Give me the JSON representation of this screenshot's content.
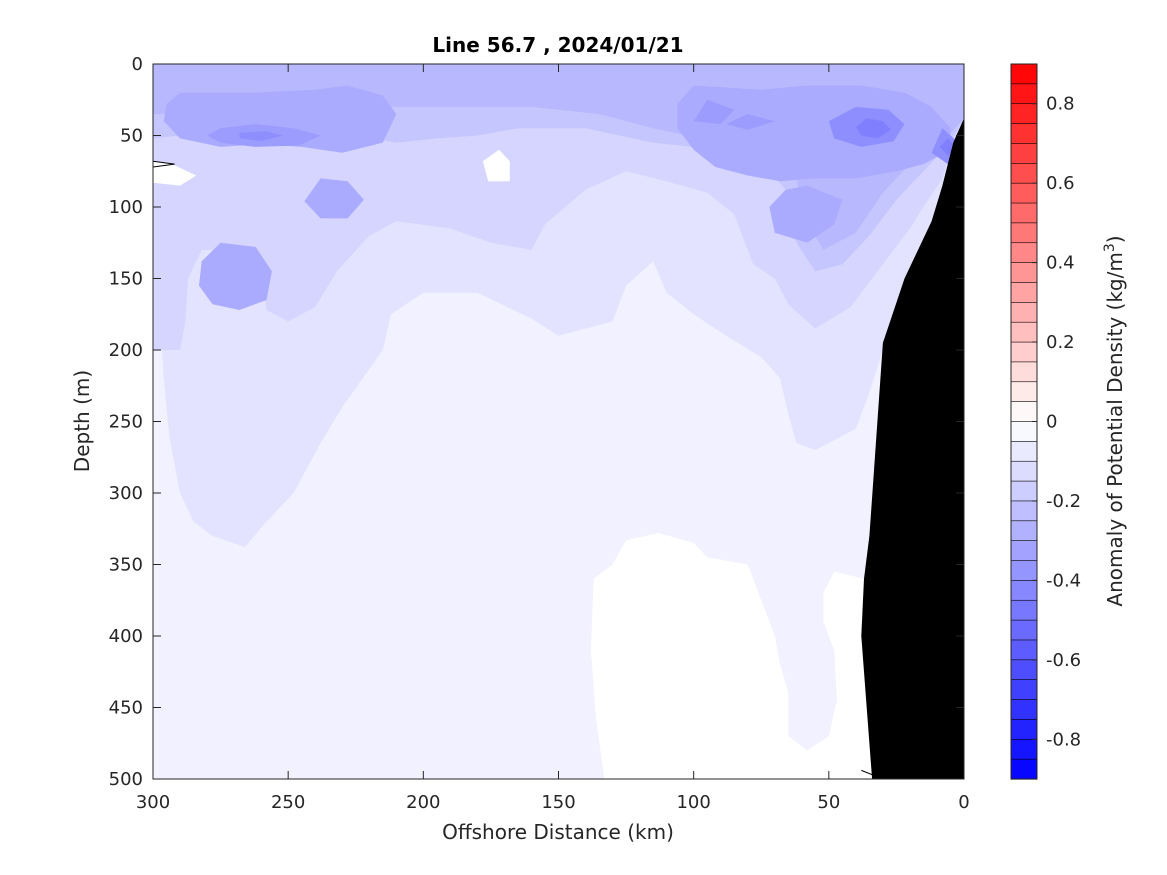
{
  "chart_data": {
    "type": "heatmap",
    "subtype": "filled-contour-section",
    "title": "Line 56.7 , 2024/01/21",
    "xlabel": "Offshore Distance (km)",
    "ylabel": "Depth (m)",
    "xlim": [
      300,
      0
    ],
    "ylim": [
      500,
      0
    ],
    "x_ticks": [
      300,
      250,
      200,
      150,
      100,
      50,
      0
    ],
    "y_ticks": [
      0,
      50,
      100,
      150,
      200,
      250,
      300,
      350,
      400,
      450,
      500
    ],
    "x_direction": "reversed",
    "y_direction": "depth-down",
    "colorbar": {
      "label": "Anomaly of Potential Density (kg/m",
      "label_superscript": "3",
      "label_suffix": ")",
      "range": [
        -0.9,
        0.9
      ],
      "step": 0.05,
      "ticks": [
        0.8,
        0.6,
        0.4,
        0.2,
        0,
        -0.2,
        -0.4,
        -0.6,
        -0.8
      ],
      "tick_labels": [
        "0.8",
        "0.6",
        "0.4",
        "0.2",
        "0",
        "-0.2",
        "-0.4",
        "-0.6",
        "-0.8"
      ],
      "negative_color": "#0000ff",
      "positive_color": "#ff0000",
      "zero_color": "#ffffff"
    },
    "contour_regions": [
      {
        "level": -0.05,
        "points": [
          [
            300,
            0
          ],
          [
            0,
            0
          ],
          [
            0,
            38
          ],
          [
            4,
            55
          ],
          [
            8,
            85
          ],
          [
            12,
            110
          ],
          [
            22,
            150
          ],
          [
            30,
            195
          ],
          [
            35,
            330
          ],
          [
            37,
            360
          ],
          [
            48,
            355
          ],
          [
            52,
            370
          ],
          [
            52,
            390
          ],
          [
            48,
            410
          ],
          [
            47,
            445
          ],
          [
            50,
            470
          ],
          [
            58,
            480
          ],
          [
            65,
            470
          ],
          [
            65,
            440
          ],
          [
            68,
            420
          ],
          [
            70,
            400
          ],
          [
            75,
            375
          ],
          [
            80,
            350
          ],
          [
            95,
            345
          ],
          [
            100,
            335
          ],
          [
            113,
            328
          ],
          [
            125,
            333
          ],
          [
            130,
            350
          ],
          [
            137,
            360
          ],
          [
            138,
            410
          ],
          [
            136,
            460
          ],
          [
            133,
            500
          ],
          [
            170,
            500
          ],
          [
            190,
            500
          ],
          [
            205,
            500
          ],
          [
            225,
            500
          ],
          [
            260,
            500
          ],
          [
            290,
            500
          ],
          [
            298,
            500
          ],
          [
            300,
            500
          ]
        ]
      },
      {
        "level": -0.1,
        "points": [
          [
            300,
            0
          ],
          [
            0,
            0
          ],
          [
            0,
            38
          ],
          [
            4,
            55
          ],
          [
            8,
            85
          ],
          [
            12,
            110
          ],
          [
            22,
            150
          ],
          [
            30,
            200
          ],
          [
            35,
            230
          ],
          [
            40,
            255
          ],
          [
            55,
            270
          ],
          [
            62,
            265
          ],
          [
            65,
            245
          ],
          [
            68,
            220
          ],
          [
            75,
            205
          ],
          [
            88,
            190
          ],
          [
            100,
            175
          ],
          [
            110,
            160
          ],
          [
            115,
            138
          ],
          [
            125,
            155
          ],
          [
            130,
            180
          ],
          [
            150,
            190
          ],
          [
            160,
            178
          ],
          [
            180,
            160
          ],
          [
            200,
            160
          ],
          [
            212,
            175
          ],
          [
            215,
            200
          ],
          [
            230,
            240
          ],
          [
            238,
            265
          ],
          [
            248,
            300
          ],
          [
            258,
            320
          ],
          [
            266,
            338
          ],
          [
            278,
            330
          ],
          [
            285,
            320
          ],
          [
            290,
            300
          ],
          [
            294,
            260
          ],
          [
            296,
            220
          ],
          [
            298,
            160
          ],
          [
            300,
            140
          ]
        ]
      },
      {
        "level": -0.15,
        "points": [
          [
            300,
            0
          ],
          [
            0,
            0
          ],
          [
            0,
            38
          ],
          [
            4,
            55
          ],
          [
            8,
            80
          ],
          [
            15,
            100
          ],
          [
            20,
            115
          ],
          [
            30,
            140
          ],
          [
            42,
            170
          ],
          [
            55,
            185
          ],
          [
            65,
            168
          ],
          [
            70,
            150
          ],
          [
            78,
            140
          ],
          [
            85,
            105
          ],
          [
            95,
            90
          ],
          [
            110,
            82
          ],
          [
            125,
            75
          ],
          [
            140,
            88
          ],
          [
            155,
            112
          ],
          [
            160,
            130
          ],
          [
            175,
            125
          ],
          [
            190,
            115
          ],
          [
            210,
            110
          ],
          [
            220,
            120
          ],
          [
            232,
            145
          ],
          [
            240,
            170
          ],
          [
            250,
            180
          ],
          [
            258,
            172
          ],
          [
            260,
            140
          ],
          [
            272,
            130
          ],
          [
            282,
            130
          ],
          [
            287,
            150
          ],
          [
            288,
            180
          ],
          [
            290,
            200
          ],
          [
            300,
            200
          ]
        ]
      },
      {
        "level": -0.2,
        "points": [
          [
            300,
            0
          ],
          [
            0,
            0
          ],
          [
            0,
            38
          ],
          [
            5,
            55
          ],
          [
            15,
            75
          ],
          [
            25,
            95
          ],
          [
            35,
            120
          ],
          [
            45,
            140
          ],
          [
            55,
            145
          ],
          [
            62,
            125
          ],
          [
            65,
            90
          ],
          [
            75,
            68
          ],
          [
            90,
            60
          ],
          [
            115,
            55
          ],
          [
            140,
            45
          ],
          [
            165,
            45
          ],
          [
            180,
            50
          ],
          [
            195,
            52
          ],
          [
            210,
            55
          ],
          [
            225,
            50
          ],
          [
            245,
            48
          ],
          [
            262,
            48
          ],
          [
            280,
            48
          ],
          [
            290,
            50
          ],
          [
            300,
            52
          ]
        ]
      },
      {
        "level": -0.25,
        "points": [
          [
            300,
            0
          ],
          [
            0,
            0
          ],
          [
            0,
            38
          ],
          [
            8,
            55
          ],
          [
            20,
            70
          ],
          [
            30,
            90
          ],
          [
            40,
            118
          ],
          [
            52,
            130
          ],
          [
            60,
            105
          ],
          [
            62,
            78
          ],
          [
            72,
            62
          ],
          [
            90,
            55
          ],
          [
            115,
            45
          ],
          [
            135,
            35
          ],
          [
            160,
            30
          ],
          [
            200,
            30
          ],
          [
            240,
            30
          ],
          [
            270,
            30
          ],
          [
            290,
            35
          ],
          [
            300,
            35
          ]
        ]
      },
      {
        "level": -0.3,
        "points": [
          [
            290,
            20
          ],
          [
            262,
            20
          ],
          [
            240,
            18
          ],
          [
            228,
            15
          ],
          [
            215,
            22
          ],
          [
            210,
            35
          ],
          [
            215,
            55
          ],
          [
            230,
            62
          ],
          [
            245,
            58
          ],
          [
            260,
            56
          ],
          [
            275,
            58
          ],
          [
            290,
            52
          ],
          [
            296,
            40
          ],
          [
            295,
            28
          ]
        ]
      },
      {
        "level": -0.3,
        "points": [
          [
            100,
            15
          ],
          [
            75,
            18
          ],
          [
            58,
            15
          ],
          [
            38,
            15
          ],
          [
            22,
            20
          ],
          [
            12,
            30
          ],
          [
            5,
            45
          ],
          [
            5,
            60
          ],
          [
            15,
            70
          ],
          [
            25,
            75
          ],
          [
            40,
            80
          ],
          [
            55,
            80
          ],
          [
            68,
            82
          ],
          [
            80,
            78
          ],
          [
            92,
            72
          ],
          [
            100,
            60
          ],
          [
            106,
            45
          ],
          [
            106,
            28
          ]
        ]
      },
      {
        "level": -0.3,
        "points": [
          [
            282,
            138
          ],
          [
            275,
            125
          ],
          [
            262,
            128
          ],
          [
            256,
            145
          ],
          [
            258,
            165
          ],
          [
            268,
            172
          ],
          [
            278,
            168
          ],
          [
            283,
            155
          ]
        ]
      },
      {
        "level": -0.3,
        "points": [
          [
            238,
            80
          ],
          [
            228,
            82
          ],
          [
            222,
            95
          ],
          [
            228,
            108
          ],
          [
            238,
            108
          ],
          [
            244,
            96
          ]
        ]
      },
      {
        "level": -0.3,
        "points": [
          [
            58,
            85
          ],
          [
            45,
            95
          ],
          [
            48,
            112
          ],
          [
            58,
            125
          ],
          [
            70,
            118
          ],
          [
            72,
            100
          ],
          [
            66,
            88
          ]
        ]
      },
      {
        "level": -0.35,
        "points": [
          [
            275,
            45
          ],
          [
            262,
            42
          ],
          [
            248,
            45
          ],
          [
            238,
            50
          ],
          [
            246,
            57
          ],
          [
            262,
            58
          ],
          [
            275,
            55
          ],
          [
            280,
            50
          ]
        ]
      },
      {
        "level": -0.35,
        "points": [
          [
            95,
            25
          ],
          [
            85,
            32
          ],
          [
            90,
            42
          ],
          [
            100,
            40
          ]
        ]
      },
      {
        "level": -0.35,
        "points": [
          [
            80,
            35
          ],
          [
            70,
            40
          ],
          [
            80,
            46
          ],
          [
            88,
            42
          ]
        ]
      },
      {
        "level": -0.4,
        "points": [
          [
            40,
            30
          ],
          [
            28,
            32
          ],
          [
            22,
            42
          ],
          [
            26,
            54
          ],
          [
            38,
            58
          ],
          [
            48,
            52
          ],
          [
            50,
            40
          ]
        ]
      },
      {
        "level": -0.4,
        "points": [
          [
            8,
            45
          ],
          [
            2,
            55
          ],
          [
            6,
            70
          ],
          [
            12,
            62
          ]
        ]
      },
      {
        "level": -0.4,
        "points": [
          [
            268,
            48
          ],
          [
            258,
            47
          ],
          [
            252,
            50
          ],
          [
            260,
            54
          ],
          [
            268,
            52
          ]
        ]
      },
      {
        "level": -0.45,
        "points": [
          [
            36,
            38
          ],
          [
            30,
            40
          ],
          [
            27,
            46
          ],
          [
            32,
            52
          ],
          [
            38,
            50
          ],
          [
            40,
            44
          ]
        ]
      },
      {
        "level": -0.45,
        "points": [
          [
            6,
            52
          ],
          [
            3,
            58
          ],
          [
            6,
            64
          ],
          [
            9,
            58
          ]
        ]
      },
      {
        "level": 0,
        "points": [
          [
            300,
            68
          ],
          [
            293,
            70
          ],
          [
            284,
            78
          ],
          [
            290,
            85
          ],
          [
            300,
            83
          ]
        ]
      },
      {
        "level": 0,
        "points": [
          [
            172,
            60
          ],
          [
            168,
            68
          ],
          [
            168,
            82
          ],
          [
            176,
            82
          ],
          [
            178,
            68
          ]
        ]
      }
    ],
    "seafloor_mask": [
      [
        0,
        38
      ],
      [
        4,
        55
      ],
      [
        8,
        85
      ],
      [
        12,
        110
      ],
      [
        22,
        150
      ],
      [
        30,
        195
      ],
      [
        35,
        330
      ],
      [
        37,
        360
      ],
      [
        38,
        400
      ],
      [
        34,
        500
      ],
      [
        0,
        500
      ]
    ],
    "contour_lines": [
      [
        [
          300,
          68
        ],
        [
          292,
          70
        ],
        [
          300,
          72
        ]
      ],
      [
        [
          38,
          494
        ],
        [
          34,
          497
        ],
        [
          33,
          500
        ]
      ]
    ]
  }
}
